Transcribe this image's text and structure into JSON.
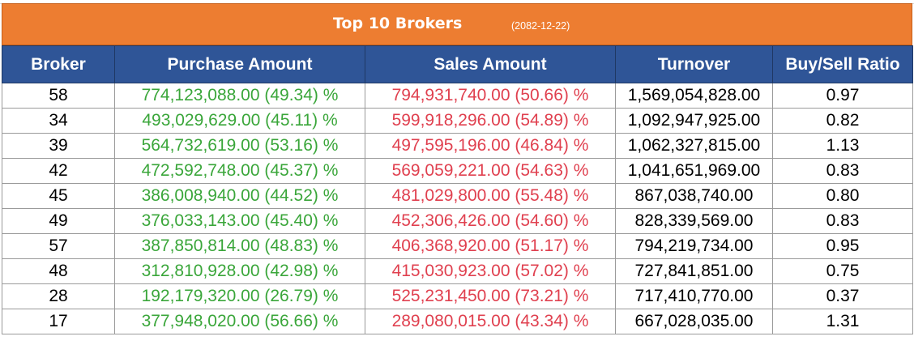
{
  "title": "Top 10 Brokers",
  "date": "(2082-12-22)",
  "colors": {
    "title_bar": "#ed7d31",
    "header": "#2f5597",
    "buy_text": "#3aa63a",
    "sell_text": "#e0404f"
  },
  "columns": [
    "Broker",
    "Purchase Amount",
    "Sales Amount",
    "Turnover",
    "Buy/Sell Ratio"
  ],
  "rows": [
    {
      "broker": "58",
      "purchase": "774,123,088.00 (49.34) %",
      "sales": "794,931,740.00 (50.66) %",
      "turnover": "1,569,054,828.00",
      "ratio": "0.97"
    },
    {
      "broker": "34",
      "purchase": "493,029,629.00 (45.11) %",
      "sales": "599,918,296.00 (54.89) %",
      "turnover": "1,092,947,925.00",
      "ratio": "0.82"
    },
    {
      "broker": "39",
      "purchase": "564,732,619.00 (53.16) %",
      "sales": "497,595,196.00 (46.84) %",
      "turnover": "1,062,327,815.00",
      "ratio": "1.13"
    },
    {
      "broker": "42",
      "purchase": "472,592,748.00 (45.37) %",
      "sales": "569,059,221.00 (54.63) %",
      "turnover": "1,041,651,969.00",
      "ratio": "0.83"
    },
    {
      "broker": "45",
      "purchase": "386,008,940.00 (44.52) %",
      "sales": "481,029,800.00 (55.48) %",
      "turnover": "867,038,740.00",
      "ratio": "0.80"
    },
    {
      "broker": "49",
      "purchase": "376,033,143.00 (45.40) %",
      "sales": "452,306,426.00 (54.60) %",
      "turnover": "828,339,569.00",
      "ratio": "0.83"
    },
    {
      "broker": "57",
      "purchase": "387,850,814.00 (48.83) %",
      "sales": "406,368,920.00 (51.17) %",
      "turnover": "794,219,734.00",
      "ratio": "0.95"
    },
    {
      "broker": "48",
      "purchase": "312,810,928.00 (42.98) %",
      "sales": "415,030,923.00 (57.02) %",
      "turnover": "727,841,851.00",
      "ratio": "0.75"
    },
    {
      "broker": "28",
      "purchase": "192,179,320.00 (26.79) %",
      "sales": "525,231,450.00 (73.21) %",
      "turnover": "717,410,770.00",
      "ratio": "0.37"
    },
    {
      "broker": "17",
      "purchase": "377,948,020.00 (56.66) %",
      "sales": "289,080,015.00 (43.34) %",
      "turnover": "667,028,035.00",
      "ratio": "1.31"
    }
  ]
}
